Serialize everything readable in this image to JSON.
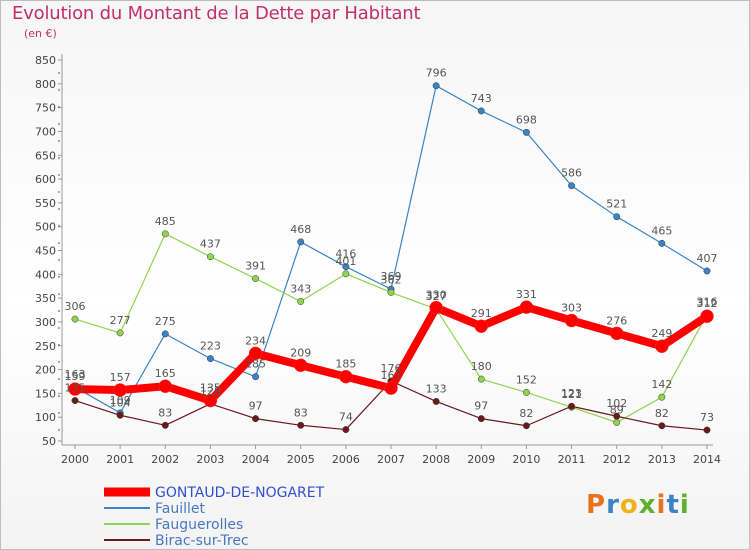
{
  "title": "Evolution du Montant de la Dette par Habitant",
  "subtitle": "(en €)",
  "logo": {
    "text": "Proxiti",
    "colors": [
      "#e8731c",
      "#3a83c4",
      "#f0b21c",
      "#5fb030",
      "#e8731c",
      "#3a83c4",
      "#5fb030"
    ]
  },
  "chart_data": {
    "type": "line",
    "x": [
      2000,
      2001,
      2002,
      2003,
      2004,
      2005,
      2006,
      2007,
      2008,
      2009,
      2010,
      2011,
      2012,
      2013,
      2014
    ],
    "ylim": [
      50,
      850
    ],
    "yticks": [
      50,
      100,
      150,
      200,
      250,
      300,
      350,
      400,
      450,
      500,
      550,
      600,
      650,
      700,
      750,
      800,
      850
    ],
    "grid": false,
    "legend_position": "bottom-left",
    "series": [
      {
        "name": "GONTAUD-DE-NOGARET",
        "color": "#ff0000",
        "highlight": true,
        "values": [
          159,
          157,
          165,
          135,
          234,
          209,
          185,
          161,
          330,
          291,
          331,
          303,
          276,
          249,
          312
        ]
      },
      {
        "name": "Fauillet",
        "color": "#3a83c4",
        "highlight": false,
        "values": [
          163,
          109,
          275,
          223,
          185,
          468,
          416,
          369,
          796,
          743,
          698,
          586,
          521,
          465,
          407
        ]
      },
      {
        "name": "Fauguerolles",
        "color": "#8fd44e",
        "highlight": false,
        "values": [
          306,
          277,
          485,
          437,
          391,
          343,
          401,
          362,
          327,
          180,
          152,
          121,
          89,
          142,
          316
        ]
      },
      {
        "name": "Birac-sur-Trec",
        "color": "#6b1a1a",
        "highlight": false,
        "values": [
          135,
          104,
          83,
          128,
          97,
          83,
          74,
          176,
          133,
          97,
          82,
          123,
          102,
          82,
          73
        ]
      }
    ]
  }
}
